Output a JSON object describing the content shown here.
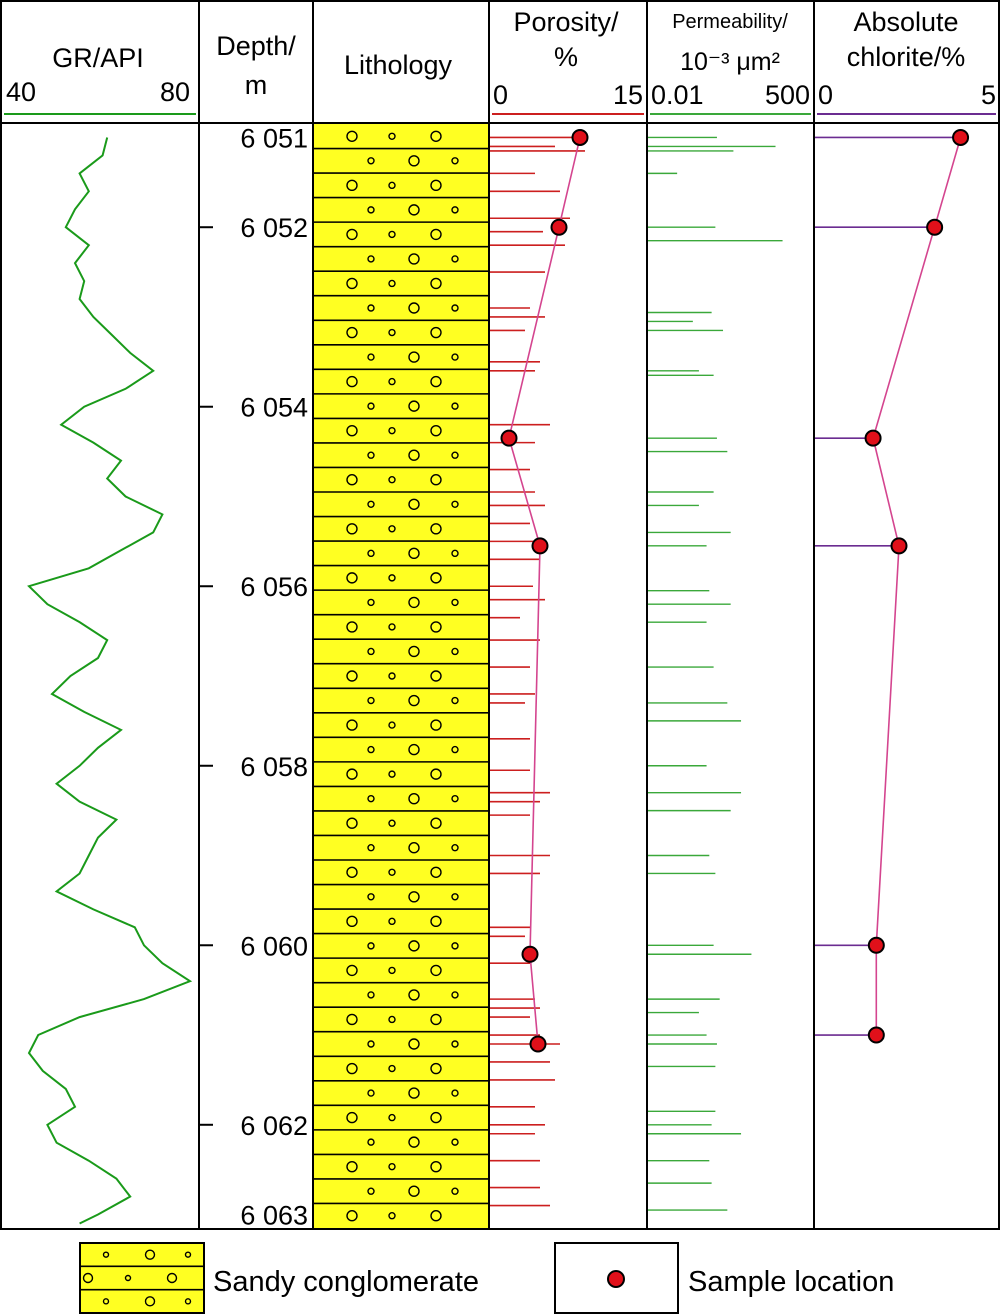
{
  "chart_data": {
    "type": "well-log",
    "headers": {
      "gr": {
        "title": "GR/API",
        "min_label": "40",
        "max_label": "80",
        "range": [
          40,
          80
        ],
        "color": "#1a9a1a"
      },
      "depth": {
        "title_line1": "Depth/",
        "title_line2": "m"
      },
      "lithology": {
        "title": "Lithology"
      },
      "porosity": {
        "title_line1": "Porosity/",
        "title_line2": "%",
        "min_label": "0",
        "max_label": "15",
        "range": [
          0,
          15
        ],
        "color": "#cc1f1f"
      },
      "permeability": {
        "title_line1": "Permeability/",
        "title_line2": "10⁻³ μm²",
        "min_label": "0.01",
        "max_label": "500",
        "range": [
          0.01,
          500
        ],
        "scale": "log",
        "color": "#3aa83a"
      },
      "chlorite": {
        "title_line1": "Absolute",
        "title_line2": "chlorite/%",
        "min_label": "0",
        "max_label": "5",
        "range": [
          0,
          5
        ],
        "color": "#6b2c91"
      }
    },
    "depth_range": [
      6050.85,
      6063.15
    ],
    "depth_ticks": [
      {
        "depth": 6051,
        "label": "6 051",
        "mark": false
      },
      {
        "depth": 6052,
        "label": "6 052",
        "mark": true
      },
      {
        "depth": 6054,
        "label": "6 054",
        "mark": true
      },
      {
        "depth": 6056,
        "label": "6 056",
        "mark": true
      },
      {
        "depth": 6058,
        "label": "6 058",
        "mark": true
      },
      {
        "depth": 6060,
        "label": "6 060",
        "mark": true
      },
      {
        "depth": 6062,
        "label": "6 062",
        "mark": true
      },
      {
        "depth": 6063,
        "label": "6 063",
        "mark": false
      }
    ],
    "gr_curve": {
      "depth": [
        6051.0,
        6051.2,
        6051.4,
        6051.6,
        6051.8,
        6052.0,
        6052.2,
        6052.4,
        6052.6,
        6052.8,
        6053.0,
        6053.2,
        6053.4,
        6053.6,
        6053.8,
        6054.0,
        6054.2,
        6054.4,
        6054.6,
        6054.8,
        6055.0,
        6055.2,
        6055.4,
        6055.6,
        6055.8,
        6056.0,
        6056.2,
        6056.4,
        6056.6,
        6056.8,
        6057.0,
        6057.2,
        6057.4,
        6057.6,
        6057.8,
        6058.0,
        6058.2,
        6058.4,
        6058.6,
        6058.8,
        6059.0,
        6059.2,
        6059.4,
        6059.6,
        6059.8,
        6060.0,
        6060.2,
        6060.4,
        6060.6,
        6060.8,
        6061.0,
        6061.2,
        6061.4,
        6061.6,
        6061.8,
        6062.0,
        6062.2,
        6062.4,
        6062.6,
        6062.8,
        6063.0,
        6063.1
      ],
      "api": [
        62,
        61,
        56,
        58,
        55,
        53,
        58,
        55,
        57,
        56,
        59,
        63,
        67,
        72,
        66,
        57,
        52,
        59,
        65,
        62,
        66,
        74,
        72,
        65,
        58,
        45,
        49,
        56,
        62,
        60,
        54,
        50,
        57,
        65,
        60,
        56,
        51,
        56,
        64,
        60,
        58,
        56,
        51,
        59,
        68,
        70,
        74,
        80,
        70,
        56,
        47,
        45,
        48,
        53,
        55,
        49,
        51,
        58,
        64,
        67,
        60,
        56
      ]
    },
    "lithology": {
      "name": "Sandy conglomerate",
      "fill": "#ffff22"
    },
    "porosity_bars": {
      "depth": [
        6051.0,
        6051.1,
        6051.15,
        6051.4,
        6051.6,
        6051.9,
        6052.05,
        6052.2,
        6052.5,
        6052.9,
        6053.0,
        6053.15,
        6053.5,
        6053.6,
        6054.2,
        6054.4,
        6054.7,
        6054.95,
        6055.1,
        6055.3,
        6055.5,
        6055.7,
        6056.0,
        6056.15,
        6056.35,
        6056.6,
        6056.9,
        6057.2,
        6057.3,
        6057.7,
        6058.05,
        6058.3,
        6058.4,
        6058.55,
        6059.0,
        6059.2,
        6059.8,
        6059.9,
        6060.2,
        6060.6,
        6060.7,
        6060.8,
        6061.0,
        6061.1,
        6061.3,
        6061.5,
        6061.8,
        6062.0,
        6062.1,
        6062.4,
        6062.7,
        6062.9
      ],
      "value": [
        9.0,
        6.5,
        9.5,
        4.5,
        7.0,
        8.0,
        5.3,
        7.5,
        5.5,
        4.0,
        5.5,
        3.5,
        5.0,
        4.5,
        6.0,
        4.5,
        4.0,
        4.5,
        5.5,
        4.0,
        5.0,
        5.0,
        4.3,
        5.5,
        3.0,
        5.0,
        4.0,
        4.5,
        3.5,
        4.0,
        4.0,
        6.0,
        5.0,
        4.0,
        6.0,
        5.0,
        4.0,
        3.5,
        4.0,
        4.5,
        5.0,
        4.0,
        5.0,
        7.0,
        6.0,
        6.5,
        4.5,
        5.5,
        4.5,
        5.0,
        5.0,
        6.0
      ]
    },
    "porosity_samples": {
      "depth": [
        6051.0,
        6052.0,
        6054.35,
        6055.55,
        6060.1,
        6061.1
      ],
      "value": [
        9.0,
        6.9,
        1.9,
        5.0,
        4.0,
        4.8
      ]
    },
    "permeability_bars": {
      "depth": [
        6051.0,
        6051.1,
        6051.15,
        6051.4,
        6052.0,
        6052.15,
        6052.95,
        6053.05,
        6053.15,
        6053.6,
        6053.65,
        6054.35,
        6054.5,
        6054.95,
        6055.1,
        6055.4,
        6055.55,
        6056.05,
        6056.2,
        6056.4,
        6056.9,
        6057.3,
        6057.5,
        6058.0,
        6058.3,
        6058.5,
        6059.0,
        6059.2,
        6060.0,
        6060.1,
        6060.6,
        6060.75,
        6061.0,
        6061.1,
        6061.35,
        6061.85,
        6062.0,
        6062.1,
        6062.4,
        6062.65,
        6062.95
      ],
      "value": [
        1.0,
        50,
        3.0,
        0.07,
        0.9,
        80,
        0.7,
        0.2,
        1.5,
        0.3,
        0.8,
        1.0,
        2.0,
        0.8,
        0.3,
        2.5,
        0.5,
        0.6,
        2.5,
        0.5,
        0.8,
        2.0,
        5.0,
        0.5,
        5.0,
        2.5,
        0.6,
        0.9,
        0.8,
        10,
        1.2,
        0.3,
        0.5,
        1.0,
        0.9,
        0.9,
        0.7,
        5.0,
        0.6,
        0.7,
        2.0
      ]
    },
    "chlorite_samples": {
      "depth": [
        6051.0,
        6052.0,
        6054.35,
        6055.55,
        6060.0,
        6061.0
      ],
      "value": [
        4.4,
        3.6,
        1.7,
        2.5,
        1.8,
        1.8
      ]
    },
    "legend": [
      {
        "kind": "lithology",
        "label": "Sandy conglomerate"
      },
      {
        "kind": "sample",
        "label": "Sample location"
      }
    ]
  }
}
